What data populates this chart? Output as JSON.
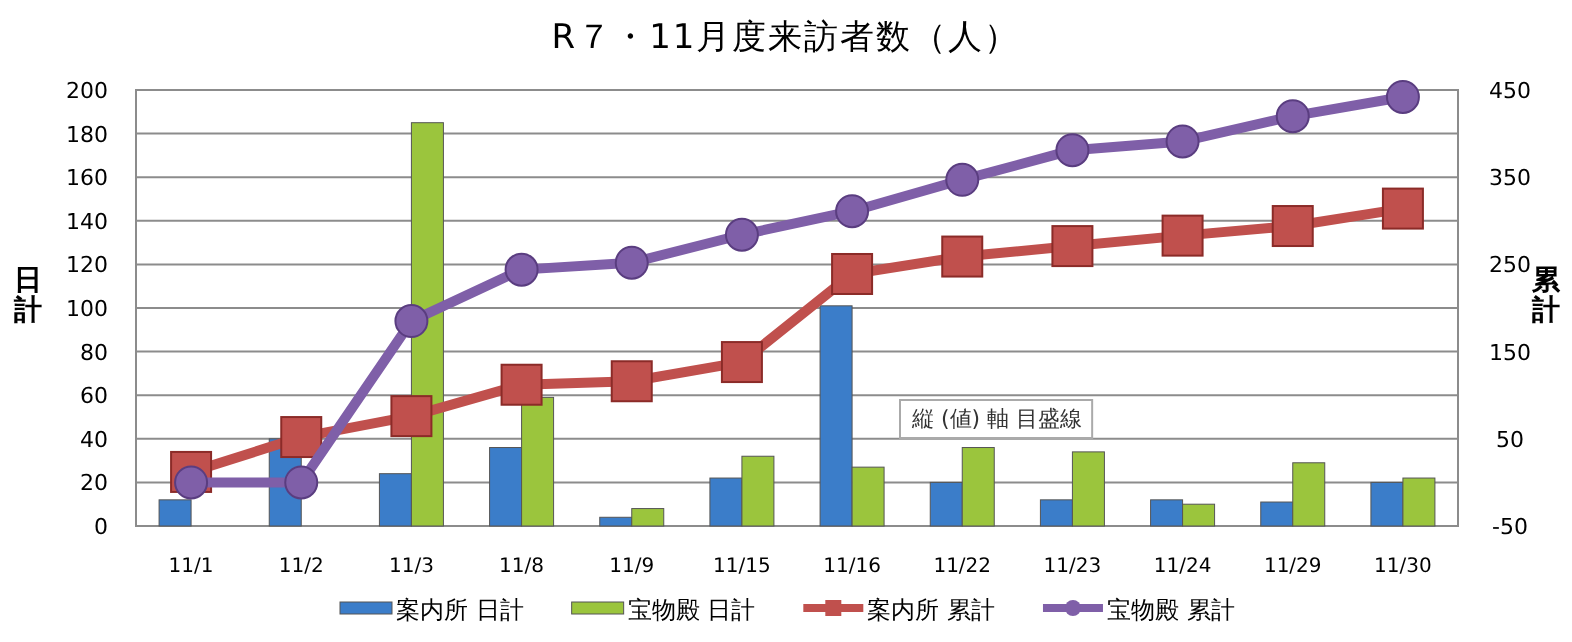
{
  "chart_data": {
    "type": "bar",
    "title": "R７・11月度来訪者数（人）",
    "ylabel": "日計",
    "y2label": "累計",
    "categories": [
      "11/1",
      "11/2",
      "11/3",
      "11/8",
      "11/9",
      "11/15",
      "11/16",
      "11/22",
      "11/23",
      "11/24",
      "11/29",
      "11/30"
    ],
    "series": [
      {
        "name": "案内所 日計",
        "color": "#3b7dc9",
        "values": [
          12,
          40,
          24,
          36,
          4,
          22,
          101,
          20,
          12,
          12,
          11,
          20
        ]
      },
      {
        "name": "宝物殿 日計",
        "color": "#9bc53d",
        "values": [
          0,
          0,
          185,
          59,
          8,
          32,
          27,
          36,
          34,
          10,
          29,
          22
        ]
      },
      {
        "name": "案内所 累計",
        "type": "line",
        "axis": "y2",
        "marker": "square",
        "color": "#c0504d",
        "values": [
          12,
          52,
          76,
          112,
          116,
          138,
          239,
          259,
          271,
          283,
          294,
          314
        ]
      },
      {
        "name": "宝物殿 累計",
        "type": "line",
        "axis": "y2",
        "marker": "circle",
        "color": "#7f5fa8",
        "values": [
          0,
          0,
          185,
          244,
          252,
          284,
          311,
          347,
          381,
          391,
          420,
          442
        ]
      }
    ],
    "ylim": [
      0,
      200
    ],
    "yticks": [
      0,
      20,
      40,
      60,
      80,
      100,
      120,
      140,
      160,
      180,
      200
    ],
    "y2lim": [
      -50,
      450
    ],
    "y2ticks": [
      -50,
      50,
      150,
      250,
      350,
      450
    ],
    "grid": "y",
    "legend": "bottom",
    "annotations": [
      "縦 (値) 軸 目盛線"
    ]
  }
}
